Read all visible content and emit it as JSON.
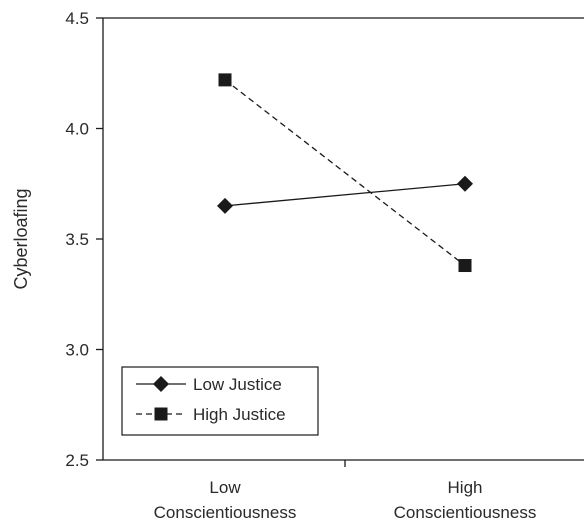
{
  "chart_data": {
    "type": "line",
    "title": "",
    "xlabel": "",
    "ylabel": "Cyberloafing",
    "ylim": [
      2.5,
      4.5
    ],
    "yticks": [
      "2.5",
      "3.0",
      "3.5",
      "4.0",
      "4.5"
    ],
    "categories": [
      [
        "Low",
        "Conscientiousness"
      ],
      [
        "High",
        "Conscientiousness"
      ]
    ],
    "series": [
      {
        "name": "Low Justice",
        "values": [
          3.65,
          3.75
        ],
        "line": "solid",
        "marker": "diamond"
      },
      {
        "name": "High Justice",
        "values": [
          4.22,
          3.38
        ],
        "line": "dashed",
        "marker": "square"
      }
    ],
    "legend": "bottom-left",
    "grid": false
  },
  "colors": {
    "ink": "#1a1a1a"
  }
}
